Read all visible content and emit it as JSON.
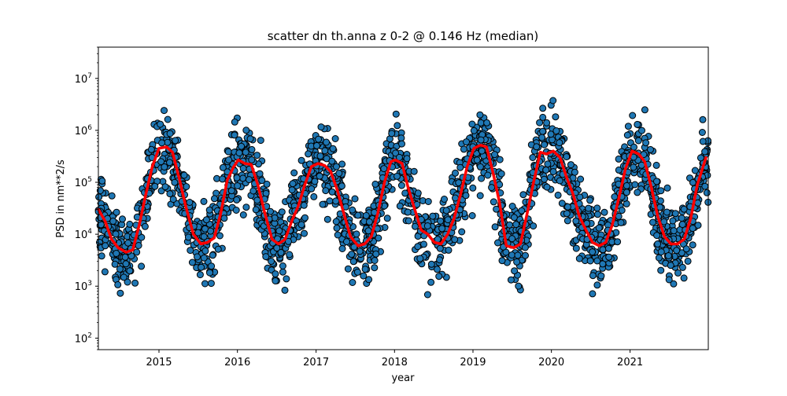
{
  "chart_data": {
    "type": "scatter",
    "title": "scatter dn th.anna z 0-2 @ 0.146 Hz (median)",
    "xlabel": "year",
    "ylabel": "PSD in nm**2/s",
    "yscale": "log",
    "xlim": [
      "2014-03-25",
      "2021-12-31"
    ],
    "ylim": [
      60,
      40000000
    ],
    "x_ticks": [
      "2015",
      "2016",
      "2017",
      "2018",
      "2019",
      "2020",
      "2021"
    ],
    "y_ticks": [
      {
        "value": 100,
        "base": "10",
        "exp": "2"
      },
      {
        "value": 1000,
        "base": "10",
        "exp": "3"
      },
      {
        "value": 10000,
        "base": "10",
        "exp": "4"
      },
      {
        "value": 100000,
        "base": "10",
        "exp": "5"
      },
      {
        "value": 1000000,
        "base": "10",
        "exp": "6"
      },
      {
        "value": 10000000,
        "base": "10",
        "exp": "7"
      }
    ],
    "grid": false,
    "colors": {
      "scatter_fill": "#1f77b4",
      "scatter_edge": "#000000",
      "median_line": "#ff0000"
    },
    "median_series": {
      "x": [
        "2014-03-25",
        "2014-04-25",
        "2014-05-25",
        "2014-06-25",
        "2014-08-01",
        "2014-09-01",
        "2014-10-01",
        "2014-11-01",
        "2014-12-01",
        "2015-01-01",
        "2015-02-05",
        "2015-03-05",
        "2015-04-05",
        "2015-05-05",
        "2015-06-10",
        "2015-07-15",
        "2015-08-15",
        "2015-09-15",
        "2015-10-15",
        "2015-11-15",
        "2015-12-15",
        "2016-01-05",
        "2016-02-05",
        "2016-03-05",
        "2016-04-05",
        "2016-05-05",
        "2016-06-10",
        "2016-07-10",
        "2016-08-10",
        "2016-09-10",
        "2016-10-10",
        "2016-11-10",
        "2016-12-10",
        "2017-01-10",
        "2017-02-10",
        "2017-03-10",
        "2017-04-10",
        "2017-05-10",
        "2017-06-10",
        "2017-07-15",
        "2017-08-15",
        "2017-09-15",
        "2017-10-15",
        "2017-11-15",
        "2017-12-15",
        "2018-01-05",
        "2018-02-05",
        "2018-03-05",
        "2018-04-05",
        "2018-05-05",
        "2018-06-05",
        "2018-07-05",
        "2018-08-05",
        "2018-09-05",
        "2018-10-05",
        "2018-11-05",
        "2018-12-05",
        "2019-01-05",
        "2019-02-05",
        "2019-03-05",
        "2019-04-05",
        "2019-05-05",
        "2019-06-05",
        "2019-07-10",
        "2019-08-10",
        "2019-09-10",
        "2019-10-10",
        "2019-11-10",
        "2019-12-10",
        "2020-01-10",
        "2020-02-10",
        "2020-03-10",
        "2020-04-10",
        "2020-05-10",
        "2020-06-10",
        "2020-07-10",
        "2020-08-10",
        "2020-09-10",
        "2020-10-10",
        "2020-11-10",
        "2020-12-10",
        "2021-01-10",
        "2021-02-10",
        "2021-03-10",
        "2021-04-10",
        "2021-05-10",
        "2021-06-10",
        "2021-07-10",
        "2021-08-10",
        "2021-09-10",
        "2021-10-10",
        "2021-11-10",
        "2021-12-20"
      ],
      "y": [
        30000,
        18000,
        8000,
        5500,
        4500,
        5000,
        15000,
        60000,
        200000,
        450000,
        480000,
        380000,
        120000,
        35000,
        10000,
        6500,
        7000,
        8500,
        25000,
        110000,
        200000,
        270000,
        230000,
        220000,
        90000,
        28000,
        8000,
        6500,
        8000,
        18000,
        35000,
        90000,
        200000,
        230000,
        210000,
        160000,
        70000,
        25000,
        9000,
        6000,
        6500,
        9000,
        25000,
        100000,
        250000,
        270000,
        230000,
        80000,
        30000,
        12000,
        10000,
        7000,
        6500,
        10000,
        20000,
        60000,
        200000,
        450000,
        520000,
        480000,
        150000,
        40000,
        6000,
        5500,
        6500,
        25000,
        100000,
        380000,
        350000,
        400000,
        300000,
        130000,
        60000,
        22000,
        12000,
        7000,
        6000,
        7000,
        15000,
        50000,
        180000,
        400000,
        350000,
        250000,
        80000,
        22000,
        9000,
        6500,
        6500,
        8000,
        20000,
        90000,
        300000
      ]
    }
  }
}
